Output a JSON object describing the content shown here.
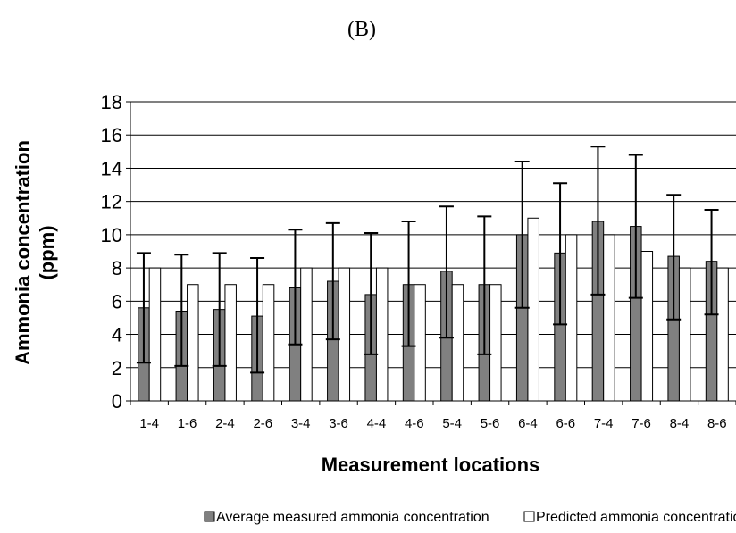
{
  "panel_label": "(B)",
  "chart_data": {
    "type": "bar",
    "title": "",
    "xlabel": "Measurement locations",
    "ylabel": "Ammonia concentration (ppm)",
    "ylim": [
      0,
      18
    ],
    "yticks": [
      0,
      2,
      4,
      6,
      8,
      10,
      12,
      14,
      16,
      18
    ],
    "grid": true,
    "legend_position": "bottom",
    "categories": [
      "1-4",
      "1-6",
      "2-4",
      "2-6",
      "3-4",
      "3-6",
      "4-4",
      "4-6",
      "5-4",
      "5-6",
      "6-4",
      "6-6",
      "7-4",
      "7-6",
      "8-4",
      "8-6"
    ],
    "series": [
      {
        "name": "Average measured ammonia concentration",
        "color": "#808080",
        "values": [
          5.6,
          5.4,
          5.5,
          5.1,
          6.8,
          7.2,
          6.4,
          7.0,
          7.8,
          7.0,
          10.0,
          8.9,
          10.8,
          10.5,
          8.7,
          8.4
        ],
        "error_low": [
          2.3,
          2.1,
          2.1,
          1.7,
          3.4,
          3.7,
          2.8,
          3.3,
          3.8,
          2.8,
          5.6,
          4.6,
          6.4,
          6.2,
          4.9,
          5.2
        ],
        "error_high": [
          8.9,
          8.8,
          8.9,
          8.6,
          10.3,
          10.7,
          10.1,
          10.8,
          11.7,
          11.1,
          14.4,
          13.1,
          15.3,
          14.8,
          12.4,
          11.5
        ]
      },
      {
        "name": "Predicted ammonia concentration",
        "color": "#ffffff",
        "values": [
          8,
          7,
          7,
          7,
          8,
          8,
          8,
          7,
          7,
          7,
          11,
          10,
          10,
          9,
          8,
          8
        ]
      }
    ]
  }
}
